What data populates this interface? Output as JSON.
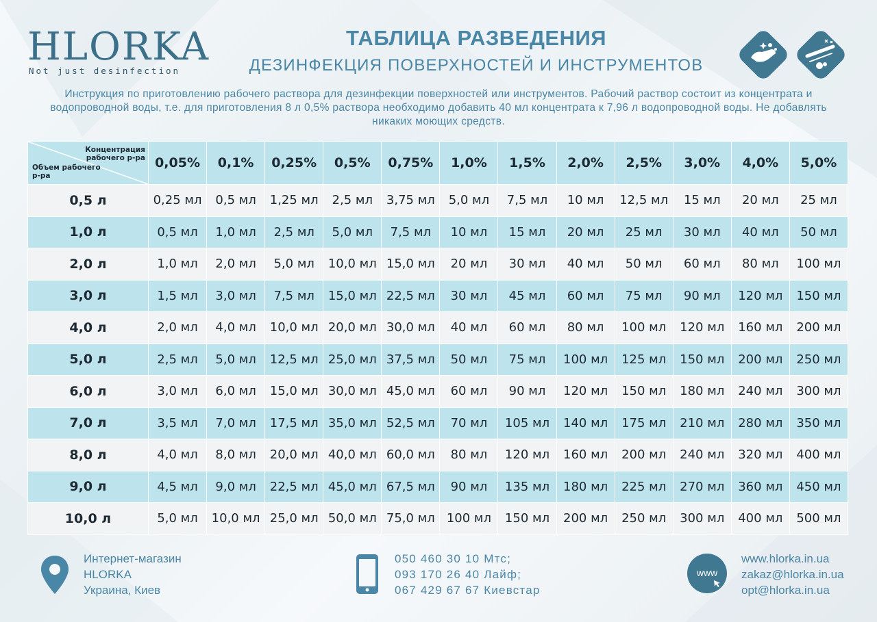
{
  "brand": {
    "name": "HLORKA",
    "tagline": "Not just desinfection"
  },
  "header": {
    "title": "ТАБЛИЦА РАЗВЕДЕНИЯ",
    "subtitle": "ДЕЗИНФЕКЦИЯ ПОВЕРХНОСТЕЙ И ИНСТРУМЕНТОВ",
    "icons": [
      "surface-cleaning-icon",
      "instruments-icon"
    ]
  },
  "intro": "Инструкция по приготовлению рабочего раствора для дезинфекции поверхностей или инструментов. Рабочий раствор состоит из концентрата и водопроводной воды, т.е. для приготовления 8 л 0,5% раствора необходимо добавить 40 мл концентрата к 7,96 л водопроводной воды. Не добавлять никаких моющих средств.",
  "table": {
    "corner_top": "Концентрация рабочего р-ра",
    "corner_bottom": "Объем рабочего р-ра",
    "columns": [
      "0,05%",
      "0,1%",
      "0,25%",
      "0,5%",
      "0,75%",
      "1,0%",
      "1,5%",
      "2,0%",
      "2,5%",
      "3,0%",
      "4,0%",
      "5,0%"
    ],
    "rows": [
      {
        "volume": "0,5 л",
        "cells": [
          "0,25 мл",
          "0,5 мл",
          "1,25 мл",
          "2,5 мл",
          "3,75 мл",
          "5,0 мл",
          "7,5 мл",
          "10 мл",
          "12,5 мл",
          "15 мл",
          "20 мл",
          "25 мл"
        ]
      },
      {
        "volume": "1,0 л",
        "cells": [
          "0,5 мл",
          "1,0 мл",
          "2,5 мл",
          "5,0 мл",
          "7,5 мл",
          "10 мл",
          "15 мл",
          "20 мл",
          "25 мл",
          "30 мл",
          "40 мл",
          "50 мл"
        ]
      },
      {
        "volume": "2,0 л",
        "cells": [
          "1,0 мл",
          "2,0 мл",
          "5,0 мл",
          "10,0 мл",
          "15,0 мл",
          "20 мл",
          "30 мл",
          "40 мл",
          "50 мл",
          "60 мл",
          "80 мл",
          "100 мл"
        ]
      },
      {
        "volume": "3,0 л",
        "cells": [
          "1,5 мл",
          "3,0 мл",
          "7,5 мл",
          "15,0 мл",
          "22,5 мл",
          "30 мл",
          "45 мл",
          "60 мл",
          "75 мл",
          "90 мл",
          "120 мл",
          "150 мл"
        ]
      },
      {
        "volume": "4,0 л",
        "cells": [
          "2,0 мл",
          "4,0 мл",
          "10,0 мл",
          "20,0 мл",
          "30,0 мл",
          "40 мл",
          "60 мл",
          "80 мл",
          "100 мл",
          "120 мл",
          "160 мл",
          "200 мл"
        ]
      },
      {
        "volume": "5,0 л",
        "cells": [
          "2,5 мл",
          "5,0 мл",
          "12,5 мл",
          "25,0 мл",
          "37,5 мл",
          "50 мл",
          "75 мл",
          "100 мл",
          "125 мл",
          "150 мл",
          "200 мл",
          "250 мл"
        ]
      },
      {
        "volume": "6,0 л",
        "cells": [
          "3,0 мл",
          "6,0 мл",
          "15,0 мл",
          "30,0 мл",
          "45,0 мл",
          "60 мл",
          "90 мл",
          "120 мл",
          "150 мл",
          "180 мл",
          "240 мл",
          "300 мл"
        ]
      },
      {
        "volume": "7,0 л",
        "cells": [
          "3,5 мл",
          "7,0 мл",
          "17,5 мл",
          "35,0 мл",
          "52,5 мл",
          "70 мл",
          "105 мл",
          "140 мл",
          "175 мл",
          "210 мл",
          "280 мл",
          "350 мл"
        ]
      },
      {
        "volume": "8,0 л",
        "cells": [
          "4,0 мл",
          "8,0 мл",
          "20,0 мл",
          "40,0 мл",
          "60,0 мл",
          "80 мл",
          "120 мл",
          "160 мл",
          "200 мл",
          "240 мл",
          "320 мл",
          "400 мл"
        ]
      },
      {
        "volume": "9,0 л",
        "cells": [
          "4,5 мл",
          "9,0 мл",
          "22,5 мл",
          "45,0 мл",
          "67,5 мл",
          "90 мл",
          "135 мл",
          "180 мл",
          "225 мл",
          "270 мл",
          "360 мл",
          "450 мл"
        ]
      },
      {
        "volume": "10,0 л",
        "cells": [
          "5,0 мл",
          "10,0 мл",
          "25,0 мл",
          "50,0 мл",
          "75,0 мл",
          "100 мл",
          "150 мл",
          "200 мл",
          "250 мл",
          "300 мл",
          "400 мл",
          "500 мл"
        ]
      }
    ]
  },
  "footer": {
    "address": [
      "Интернет-магазин",
      "HLORKA",
      "Украина, Киев"
    ],
    "phones": [
      "050 460 30 10 Мтс;",
      "093 170 26 40 Лайф;",
      "067 429 67 67 Киевстар"
    ],
    "www_label": "www",
    "contacts": [
      "www.hlorka.in.ua",
      "zakaz@hlorka.in.ua",
      "opt@hlorka.in.ua"
    ]
  },
  "colors": {
    "accent": "#4a86a6",
    "row_blue": "#bde3ec",
    "row_grey": "#f2f3f4",
    "icon_bg": "#3f7890"
  }
}
